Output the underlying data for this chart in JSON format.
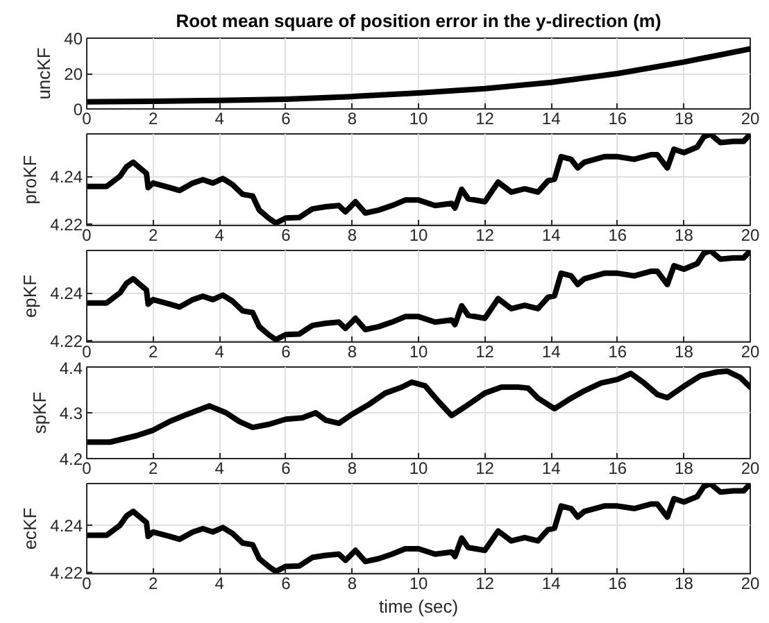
{
  "chart_data": [
    {
      "type": "line",
      "title": "Root mean square of position error in the y-direction (m)",
      "ylabel": "uncKF",
      "color": "#000000",
      "grid": true,
      "x": [
        0,
        2,
        4,
        6,
        8,
        10,
        12,
        14,
        16,
        18,
        20
      ],
      "values": [
        4,
        4.3,
        4.8,
        5.5,
        7,
        9,
        11.5,
        15,
        20,
        26.5,
        34
      ],
      "xlim": [
        0,
        20
      ],
      "ylim": [
        0,
        40
      ],
      "xticks": [
        0,
        2,
        4,
        6,
        8,
        10,
        12,
        14,
        16,
        18,
        20
      ],
      "yticks": [
        0,
        20,
        40
      ]
    },
    {
      "type": "line",
      "ylabel": "proKF",
      "color": "#000000",
      "grid": true,
      "x": [
        0,
        0.6,
        1.0,
        1.2,
        1.4,
        1.6,
        1.8,
        1.85,
        2.0,
        2.5,
        2.8,
        3.2,
        3.5,
        3.8,
        4.1,
        4.4,
        4.7,
        5.0,
        5.2,
        5.5,
        5.7,
        6.0,
        6.4,
        6.8,
        7.2,
        7.6,
        7.8,
        8.1,
        8.4,
        8.8,
        9.2,
        9.6,
        10,
        10.5,
        11,
        11.1,
        11.3,
        11.5,
        12,
        12.4,
        12.8,
        13.2,
        13.6,
        13.9,
        14.1,
        14.3,
        14.6,
        14.8,
        15,
        15.6,
        16,
        16.5,
        17,
        17.2,
        17.5,
        17.7,
        18,
        18.4,
        18.6,
        18.8,
        19.1,
        19.5,
        19.8,
        20
      ],
      "values": [
        4.2358,
        4.2358,
        4.24,
        4.244,
        4.2459,
        4.2435,
        4.2412,
        4.2353,
        4.2372,
        4.2353,
        4.2341,
        4.2372,
        4.2386,
        4.2372,
        4.2391,
        4.2365,
        4.2325,
        4.2318,
        4.2259,
        4.2224,
        4.2205,
        4.2226,
        4.2228,
        4.2264,
        4.2273,
        4.2278,
        4.2252,
        4.2294,
        4.2247,
        4.2259,
        4.2278,
        4.2301,
        4.2301,
        4.2278,
        4.2287,
        4.2268,
        4.2346,
        4.2306,
        4.2294,
        4.2376,
        4.2334,
        4.2348,
        4.2334,
        4.2381,
        4.2388,
        4.2482,
        4.2471,
        4.2435,
        4.2459,
        4.2482,
        4.2482,
        4.2471,
        4.249,
        4.249,
        4.2435,
        4.2513,
        4.2499,
        4.2522,
        4.2565,
        4.2576,
        4.2541,
        4.2546,
        4.2546,
        4.2576
      ],
      "xlim": [
        0,
        20
      ],
      "ylim": [
        4.2195,
        4.2577
      ],
      "xticks": [
        0,
        2,
        4,
        6,
        8,
        10,
        12,
        14,
        16,
        18,
        20
      ],
      "yticks": [
        4.22,
        4.24
      ]
    },
    {
      "type": "line",
      "ylabel": "epKF",
      "color": "#000000",
      "grid": true,
      "x": [
        0,
        0.6,
        1.0,
        1.2,
        1.4,
        1.6,
        1.8,
        1.85,
        2.0,
        2.5,
        2.8,
        3.2,
        3.5,
        3.8,
        4.1,
        4.4,
        4.7,
        5.0,
        5.2,
        5.5,
        5.7,
        6.0,
        6.4,
        6.8,
        7.2,
        7.6,
        7.8,
        8.1,
        8.4,
        8.8,
        9.2,
        9.6,
        10,
        10.5,
        11,
        11.1,
        11.3,
        11.5,
        12,
        12.4,
        12.8,
        13.2,
        13.6,
        13.9,
        14.1,
        14.3,
        14.6,
        14.8,
        15,
        15.6,
        16,
        16.5,
        17,
        17.2,
        17.5,
        17.7,
        18,
        18.4,
        18.6,
        18.8,
        19.1,
        19.5,
        19.8,
        20
      ],
      "values": [
        4.2358,
        4.2358,
        4.24,
        4.244,
        4.2459,
        4.2435,
        4.2412,
        4.2353,
        4.2372,
        4.2353,
        4.2341,
        4.2372,
        4.2386,
        4.2372,
        4.2391,
        4.2365,
        4.2325,
        4.2318,
        4.2259,
        4.2224,
        4.2205,
        4.2226,
        4.2228,
        4.2264,
        4.2273,
        4.2278,
        4.2252,
        4.2294,
        4.2247,
        4.2259,
        4.2278,
        4.2301,
        4.2301,
        4.2278,
        4.2287,
        4.2268,
        4.2346,
        4.2306,
        4.2294,
        4.2376,
        4.2334,
        4.2348,
        4.2334,
        4.2381,
        4.2388,
        4.2482,
        4.2471,
        4.2435,
        4.2459,
        4.2482,
        4.2482,
        4.2471,
        4.249,
        4.249,
        4.2435,
        4.2513,
        4.2499,
        4.2522,
        4.2565,
        4.2576,
        4.2541,
        4.2546,
        4.2546,
        4.2576
      ],
      "xlim": [
        0,
        20
      ],
      "ylim": [
        4.2195,
        4.2577
      ],
      "xticks": [
        0,
        2,
        4,
        6,
        8,
        10,
        12,
        14,
        16,
        18,
        20
      ],
      "yticks": [
        4.22,
        4.24
      ]
    },
    {
      "type": "line",
      "ylabel": "spKF",
      "color": "#000000",
      "grid": true,
      "x": [
        0,
        0.7,
        1.5,
        2,
        2.5,
        3,
        3.7,
        4.2,
        4.6,
        5,
        5.5,
        6,
        6.5,
        6.9,
        7.2,
        7.6,
        8,
        8.5,
        9,
        9.5,
        9.8,
        10.2,
        10.6,
        11,
        11.4,
        12,
        12.5,
        13,
        13.3,
        13.6,
        14.1,
        14.6,
        15,
        15.5,
        16,
        16.4,
        16.8,
        17.2,
        17.5,
        18,
        18.5,
        19,
        19.3,
        19.7,
        20
      ],
      "values": [
        4.236,
        4.236,
        4.25,
        4.262,
        4.281,
        4.296,
        4.315,
        4.3,
        4.281,
        4.268,
        4.275,
        4.286,
        4.289,
        4.3,
        4.284,
        4.277,
        4.297,
        4.318,
        4.343,
        4.356,
        4.367,
        4.359,
        4.325,
        4.294,
        4.313,
        4.343,
        4.356,
        4.356,
        4.354,
        4.332,
        4.309,
        4.332,
        4.348,
        4.365,
        4.373,
        4.386,
        4.365,
        4.34,
        4.333,
        4.358,
        4.381,
        4.389,
        4.391,
        4.377,
        4.356
      ],
      "xlim": [
        0,
        20
      ],
      "ylim": [
        4.2,
        4.4
      ],
      "xticks": [
        0,
        2,
        4,
        6,
        8,
        10,
        12,
        14,
        16,
        18,
        20
      ],
      "yticks": [
        4.2,
        4.3,
        4.4
      ]
    },
    {
      "type": "line",
      "ylabel": "ecKF",
      "xlabel": "time (sec)",
      "color": "#000000",
      "grid": true,
      "x": [
        0,
        0.6,
        1.0,
        1.2,
        1.4,
        1.6,
        1.8,
        1.85,
        2.0,
        2.5,
        2.8,
        3.2,
        3.5,
        3.8,
        4.1,
        4.4,
        4.7,
        5.0,
        5.2,
        5.5,
        5.7,
        6.0,
        6.4,
        6.8,
        7.2,
        7.6,
        7.8,
        8.1,
        8.4,
        8.8,
        9.2,
        9.6,
        10,
        10.5,
        11,
        11.1,
        11.3,
        11.5,
        12,
        12.4,
        12.8,
        13.2,
        13.6,
        13.9,
        14.1,
        14.3,
        14.6,
        14.8,
        15,
        15.6,
        16,
        16.5,
        17,
        17.2,
        17.5,
        17.7,
        18,
        18.4,
        18.6,
        18.8,
        19.1,
        19.5,
        19.8,
        20
      ],
      "values": [
        4.2358,
        4.2358,
        4.24,
        4.244,
        4.2459,
        4.2435,
        4.2412,
        4.2353,
        4.2372,
        4.2353,
        4.2341,
        4.2372,
        4.2386,
        4.2372,
        4.2391,
        4.2365,
        4.2325,
        4.2318,
        4.2259,
        4.2224,
        4.2205,
        4.2226,
        4.2228,
        4.2264,
        4.2273,
        4.2278,
        4.2252,
        4.2294,
        4.2247,
        4.2259,
        4.2278,
        4.2301,
        4.2301,
        4.2278,
        4.2287,
        4.2268,
        4.2346,
        4.2306,
        4.2294,
        4.2376,
        4.2334,
        4.2348,
        4.2334,
        4.2381,
        4.2388,
        4.2482,
        4.2471,
        4.2435,
        4.2459,
        4.2482,
        4.2482,
        4.2471,
        4.249,
        4.249,
        4.2435,
        4.2513,
        4.2499,
        4.2522,
        4.2565,
        4.2576,
        4.2541,
        4.2546,
        4.2546,
        4.2576
      ],
      "xlim": [
        0,
        20
      ],
      "ylim": [
        4.2195,
        4.2577
      ],
      "xticks": [
        0,
        2,
        4,
        6,
        8,
        10,
        12,
        14,
        16,
        18,
        20
      ],
      "yticks": [
        4.22,
        4.24
      ]
    }
  ]
}
